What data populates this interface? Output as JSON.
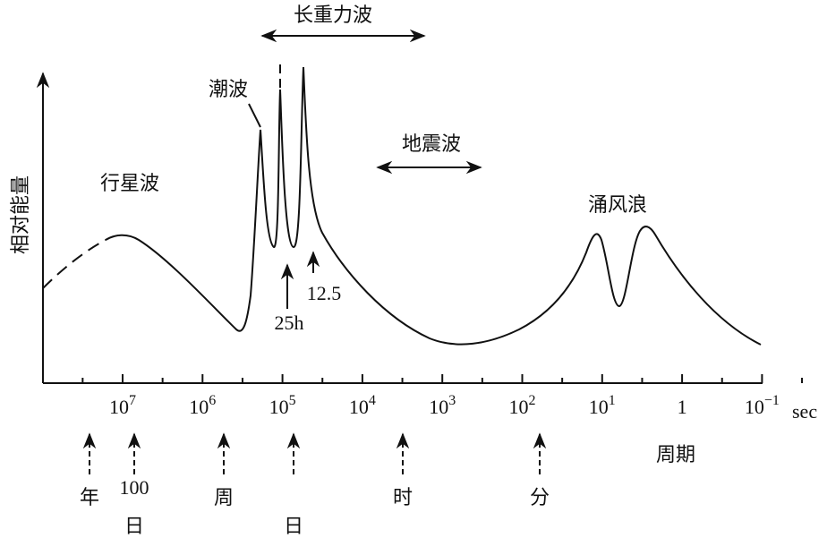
{
  "y_axis_label": "相对能量",
  "x_unit": "sec",
  "x_axis_caption": "周期",
  "x_ticks": [
    {
      "base": "10",
      "exponent": "7"
    },
    {
      "base": "10",
      "exponent": "6"
    },
    {
      "base": "10",
      "exponent": "5"
    },
    {
      "base": "10",
      "exponent": "4"
    },
    {
      "base": "10",
      "exponent": "3"
    },
    {
      "base": "10",
      "exponent": "2"
    },
    {
      "base": "10",
      "exponent": "1"
    },
    {
      "base": "1"
    },
    {
      "base": "10",
      "exponent": "−1"
    }
  ],
  "regions": {
    "planetary": "行星波",
    "tidal": "潮波",
    "long_gravity": "长重力波",
    "seismic": "地震波",
    "swell_wind": "涌风浪"
  },
  "peak_labels": [
    "25h",
    "12.5"
  ],
  "period_markers": [
    {
      "lines": [
        "年"
      ]
    },
    {
      "lines": [
        "100",
        "日"
      ]
    },
    {
      "lines": [
        "周"
      ]
    },
    {
      "lines": [
        "日"
      ]
    },
    {
      "lines": [
        "时"
      ]
    },
    {
      "lines": [
        "分"
      ]
    }
  ]
}
